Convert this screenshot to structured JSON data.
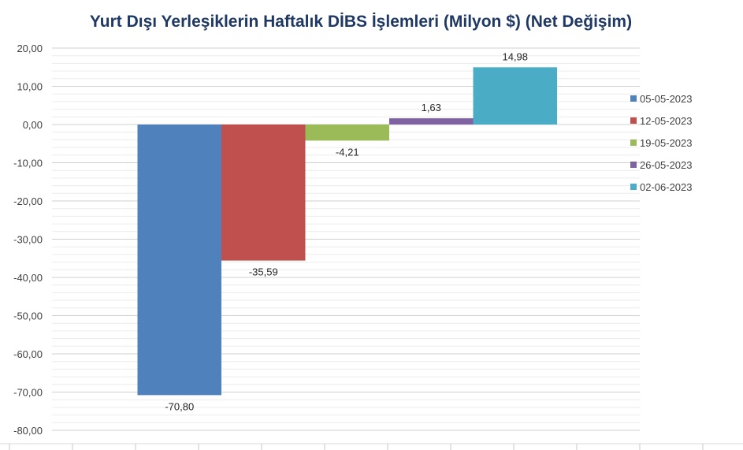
{
  "chart_data": {
    "type": "bar",
    "title": "Yurt Dışı Yerleşiklerin Haftalık DİBS İşlemleri (Milyon $) (Net Değişim)",
    "xlabel": "",
    "ylabel": "",
    "ylim": [
      -80,
      20
    ],
    "y_ticks": [
      "20,00",
      "10,00",
      "0,00",
      "-10,00",
      "-20,00",
      "-30,00",
      "-40,00",
      "-50,00",
      "-60,00",
      "-70,00",
      "-80,00"
    ],
    "y_tick_values": [
      20,
      10,
      0,
      -10,
      -20,
      -30,
      -40,
      -50,
      -60,
      -70,
      -80
    ],
    "grid": true,
    "legend_position": "right",
    "series": [
      {
        "name": "05-05-2023",
        "value": -70.8,
        "label": "-70,80",
        "color": "#4f81bd"
      },
      {
        "name": "12-05-2023",
        "value": -35.59,
        "label": "-35,59",
        "color": "#c0504d"
      },
      {
        "name": "19-05-2023",
        "value": -4.21,
        "label": "-4,21",
        "color": "#9bbb59"
      },
      {
        "name": "26-05-2023",
        "value": 1.63,
        "label": "1,63",
        "color": "#8064a2"
      },
      {
        "name": "02-06-2023",
        "value": 14.98,
        "label": "14,98",
        "color": "#4bacc6"
      }
    ],
    "title_color": "#1f3864"
  }
}
